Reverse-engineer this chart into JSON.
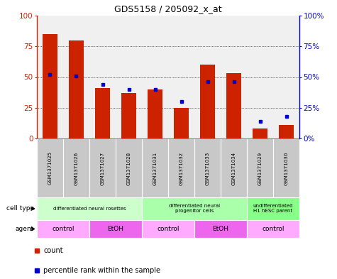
{
  "title": "GDS5158 / 205092_x_at",
  "samples": [
    "GSM1371025",
    "GSM1371026",
    "GSM1371027",
    "GSM1371028",
    "GSM1371031",
    "GSM1371032",
    "GSM1371033",
    "GSM1371034",
    "GSM1371029",
    "GSM1371030"
  ],
  "count_values": [
    85,
    80,
    41,
    37,
    40,
    25,
    60,
    53,
    8,
    11
  ],
  "percentile_values": [
    52,
    51,
    44,
    40,
    40,
    30,
    46,
    46,
    14,
    18
  ],
  "bar_color": "#cc2200",
  "dot_color": "#0000cc",
  "y_max": 100,
  "y_ticks": [
    0,
    25,
    50,
    75,
    100
  ],
  "cell_type_groups": [
    {
      "label": "differentiated neural rosettes",
      "start": 0,
      "end": 4,
      "color": "#ccffcc"
    },
    {
      "label": "differentiated neural\nprogenitor cells",
      "start": 4,
      "end": 8,
      "color": "#aaffaa"
    },
    {
      "label": "undifferentiated\nH1 hESC parent",
      "start": 8,
      "end": 10,
      "color": "#88ff88"
    }
  ],
  "agent_groups": [
    {
      "label": "control",
      "start": 0,
      "end": 2,
      "color": "#ffaaff"
    },
    {
      "label": "EtOH",
      "start": 2,
      "end": 4,
      "color": "#ee66ee"
    },
    {
      "label": "control",
      "start": 4,
      "end": 6,
      "color": "#ffaaff"
    },
    {
      "label": "EtOH",
      "start": 6,
      "end": 8,
      "color": "#ee66ee"
    },
    {
      "label": "control",
      "start": 8,
      "end": 10,
      "color": "#ffaaff"
    }
  ],
  "xlabel_cell_type": "cell type",
  "xlabel_agent": "agent",
  "legend_count": "count",
  "legend_percentile": "percentile rank within the sample",
  "left_axis_color": "#cc2200",
  "right_axis_color": "#0000cc",
  "bg_color": "#ffffff",
  "sample_bg_color": "#c8c8c8",
  "plot_bg_color": "#f0f0f0",
  "grid_color": "#000000"
}
